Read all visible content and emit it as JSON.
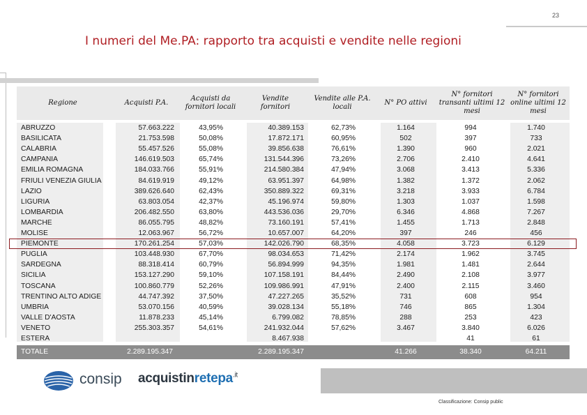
{
  "page_number": "23",
  "title": "I numeri del Me.PA: rapporto tra acquisti e vendite nelle regioni",
  "table": {
    "headers": {
      "region": "Regione",
      "acquisti_pa": "Acquisti P.A.",
      "acquisti_fornitori_locali": "Acquisti da fornitori locali",
      "vendite_fornitori": "Vendite fornitori",
      "vendite_alle_pa_locali": "Vendite alle P.A. locali",
      "n_po_attivi": "N° PO attivi",
      "n_fornitori_transanti": "N° fornitori transanti ultimi 12 mesi",
      "n_fornitori_online": "N° fornitori online ultimi 12 mesi"
    },
    "rows": [
      {
        "region": "ABRUZZO",
        "acq": "57.663.222",
        "pct1": "43,95%",
        "vend": "40.389.153",
        "pct2": "62,73%",
        "po": "1.164",
        "trans": "994",
        "online": "1.740"
      },
      {
        "region": "BASILICATA",
        "acq": "21.753.598",
        "pct1": "50,08%",
        "vend": "17.872.171",
        "pct2": "60,95%",
        "po": "502",
        "trans": "397",
        "online": "733"
      },
      {
        "region": "CALABRIA",
        "acq": "55.457.526",
        "pct1": "55,08%",
        "vend": "39.856.638",
        "pct2": "76,61%",
        "po": "1.390",
        "trans": "960",
        "online": "2.021"
      },
      {
        "region": "CAMPANIA",
        "acq": "146.619.503",
        "pct1": "65,74%",
        "vend": "131.544.396",
        "pct2": "73,26%",
        "po": "2.706",
        "trans": "2.410",
        "online": "4.641"
      },
      {
        "region": "EMILIA ROMAGNA",
        "acq": "184.033.766",
        "pct1": "55,91%",
        "vend": "214.580.384",
        "pct2": "47,94%",
        "po": "3.068",
        "trans": "3.413",
        "online": "5.336"
      },
      {
        "region": "FRIULI VENEZIA GIULIA",
        "acq": "84.619.919",
        "pct1": "49,12%",
        "vend": "63.951.397",
        "pct2": "64,98%",
        "po": "1.382",
        "trans": "1.372",
        "online": "2.062"
      },
      {
        "region": "LAZIO",
        "acq": "389.626.640",
        "pct1": "62,43%",
        "vend": "350.889.322",
        "pct2": "69,31%",
        "po": "3.218",
        "trans": "3.933",
        "online": "6.784"
      },
      {
        "region": "LIGURIA",
        "acq": "63.803.054",
        "pct1": "42,37%",
        "vend": "45.196.974",
        "pct2": "59,80%",
        "po": "1.303",
        "trans": "1.037",
        "online": "1.598"
      },
      {
        "region": "LOMBARDIA",
        "acq": "206.482.550",
        "pct1": "63,80%",
        "vend": "443.536.036",
        "pct2": "29,70%",
        "po": "6.346",
        "trans": "4.868",
        "online": "7.267"
      },
      {
        "region": "MARCHE",
        "acq": "86.055.795",
        "pct1": "48,82%",
        "vend": "73.160.191",
        "pct2": "57,41%",
        "po": "1.455",
        "trans": "1.713",
        "online": "2.848"
      },
      {
        "region": "MOLISE",
        "acq": "12.063.967",
        "pct1": "56,72%",
        "vend": "10.657.007",
        "pct2": "64,20%",
        "po": "397",
        "trans": "246",
        "online": "456"
      },
      {
        "region": "PIEMONTE",
        "acq": "170.261.254",
        "pct1": "57,03%",
        "vend": "142.026.790",
        "pct2": "68,35%",
        "po": "4.058",
        "trans": "3.723",
        "online": "6.129"
      },
      {
        "region": "PUGLIA",
        "acq": "103.448.930",
        "pct1": "67,70%",
        "vend": "98.034.653",
        "pct2": "71,42%",
        "po": "2.174",
        "trans": "1.962",
        "online": "3.745"
      },
      {
        "region": "SARDEGNA",
        "acq": "88.318.414",
        "pct1": "60,79%",
        "vend": "56.894.999",
        "pct2": "94,35%",
        "po": "1.981",
        "trans": "1.481",
        "online": "2.644"
      },
      {
        "region": "SICILIA",
        "acq": "153.127.290",
        "pct1": "59,10%",
        "vend": "107.158.191",
        "pct2": "84,44%",
        "po": "2.490",
        "trans": "2.108",
        "online": "3.977"
      },
      {
        "region": "TOSCANA",
        "acq": "100.860.779",
        "pct1": "52,26%",
        "vend": "109.986.991",
        "pct2": "47,91%",
        "po": "2.400",
        "trans": "2.115",
        "online": "3.460"
      },
      {
        "region": "TRENTINO ALTO ADIGE",
        "acq": "44.747.392",
        "pct1": "37,50%",
        "vend": "47.227.265",
        "pct2": "35,52%",
        "po": "731",
        "trans": "608",
        "online": "954"
      },
      {
        "region": "UMBRIA",
        "acq": "53.070.156",
        "pct1": "40,59%",
        "vend": "39.028.134",
        "pct2": "55,18%",
        "po": "746",
        "trans": "865",
        "online": "1.304"
      },
      {
        "region": "VALLE D'AOSTA",
        "acq": "11.878.233",
        "pct1": "45,14%",
        "vend": "6.799.082",
        "pct2": "78,85%",
        "po": "288",
        "trans": "253",
        "online": "423"
      },
      {
        "region": "VENETO",
        "acq": "255.303.357",
        "pct1": "54,61%",
        "vend": "241.932.044",
        "pct2": "57,62%",
        "po": "3.467",
        "trans": "3.840",
        "online": "6.026"
      },
      {
        "region": "ESTERA",
        "acq": "",
        "pct1": "",
        "vend": "8.467.938",
        "pct2": "",
        "po": "",
        "trans": "41",
        "online": "61"
      }
    ],
    "highlighted_region": "PIEMONTE",
    "total": {
      "label": "TOTALE",
      "acq": "2.289.195.347",
      "vend": "2.289.195.347",
      "po": "41.266",
      "trans": "38.340",
      "online": "64.211"
    }
  },
  "footer": {
    "classification": "Classificazione: Consip public",
    "logo_consip": "consip",
    "logo_acq_part1": "acquistin",
    "logo_acq_part2": "retepa",
    "logo_acq_part3": ".it"
  },
  "colors": {
    "title": "#b01e23",
    "highlight_border": "#8b1a1f",
    "total_band": "#8c8c8c",
    "acq_blue": "#1f6fb2"
  }
}
